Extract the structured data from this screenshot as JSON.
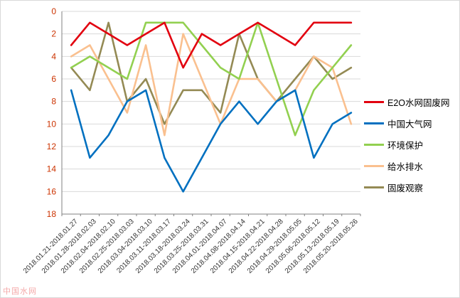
{
  "watermark": "中国水网",
  "chart_data": {
    "type": "line",
    "title": "",
    "categories": [
      "2018.01.21-2018.01.27",
      "2018.01.28-2018.02.03",
      "2018.02.04-2018.02.10",
      "2018.02.25-2018.03.03",
      "2018.03.04-2018.03.10",
      "2018.03.11-2018.03.17",
      "2018.03.18-2018.03.24",
      "2018.03.25-2018.03.31",
      "2018.04.01-2018.04.07",
      "2018.04.08-2018.04.14",
      "2018.04.15-2018.04.21",
      "2018.04.22-2018.04.28",
      "2018.04.29-2018.05.05",
      "2018.05.06-2018.05.12",
      "2018.05.13-2018.05.19",
      "2018.05.20-2018.05.26"
    ],
    "series": [
      {
        "name": "E2O水网固废网",
        "color": "#e2000f",
        "values": [
          3,
          1,
          2,
          3,
          2,
          1,
          5,
          2,
          3,
          2,
          1,
          2,
          3,
          1,
          1,
          1
        ]
      },
      {
        "name": "中国大气网",
        "color": "#0070c0",
        "values": [
          7,
          13,
          11,
          8,
          7,
          13,
          16,
          13,
          10,
          8,
          10,
          8,
          7,
          13,
          10,
          9
        ]
      },
      {
        "name": "环境保护",
        "color": "#92d050",
        "values": [
          5,
          4,
          5,
          6,
          1,
          1,
          1,
          3,
          5,
          6,
          1,
          6,
          11,
          7,
          5,
          3
        ]
      },
      {
        "name": "给水排水",
        "color": "#fac08f",
        "values": [
          4,
          3,
          6,
          9,
          3,
          11,
          2,
          6,
          10,
          6,
          6,
          8,
          7,
          4,
          5,
          10
        ]
      },
      {
        "name": "固废观察",
        "color": "#948a54",
        "values": [
          5,
          7,
          1,
          8,
          6,
          10,
          7,
          7,
          9,
          2,
          6,
          8,
          6,
          4,
          6,
          5
        ]
      }
    ],
    "y_axis": {
      "min": 0,
      "max": 18,
      "step": 2,
      "inverted": true,
      "tick_color": "#cc3300"
    },
    "x_axis": {
      "label_rotation": -45,
      "label_color": "#333333"
    },
    "grid": true,
    "gridline_color": "#d9d9d9",
    "axis_color": "#808080",
    "legend_position": "right"
  }
}
